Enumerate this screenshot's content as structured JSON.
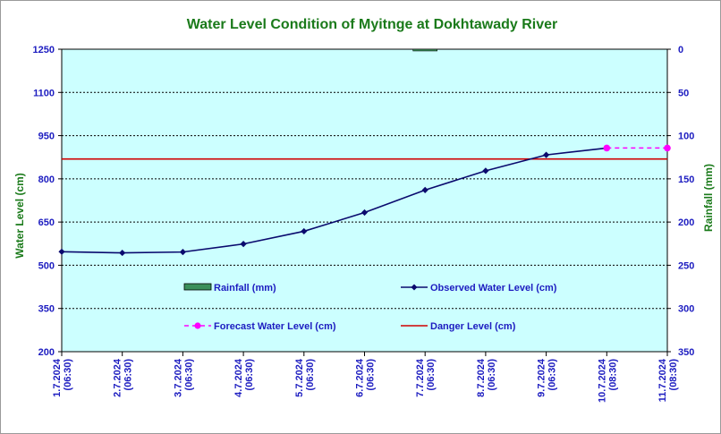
{
  "chart_data": {
    "type": "line",
    "title": "Water Level Condition of Myitnge at Dokhtawady River",
    "ylabel": "Water Level (cm)",
    "y2label": "Rainfall (mm)",
    "ylim": [
      200,
      1250
    ],
    "yticks": [
      200,
      350,
      500,
      650,
      800,
      950,
      1100,
      1250
    ],
    "y2lim": [
      0,
      350
    ],
    "y2ticks": [
      0,
      50,
      100,
      150,
      200,
      250,
      300,
      350
    ],
    "y2_inverted": true,
    "grid": true,
    "categories": [
      [
        "1.7.2024",
        "(06:30)"
      ],
      [
        "2.7.2024",
        "(06:30)"
      ],
      [
        "3.7.2024",
        "(06:30)"
      ],
      [
        "4.7.2024",
        "(06:30)"
      ],
      [
        "5.7.2024",
        "(06:30)"
      ],
      [
        "6.7.2024",
        "(06:30)"
      ],
      [
        "7.7.2024",
        "(06:30)"
      ],
      [
        "8.7.2024",
        "(06:30)"
      ],
      [
        "9.7.2024",
        "(06:30)"
      ],
      [
        "10.7.2024",
        "(08:30)"
      ],
      [
        "11.7.2024",
        "(08:30)"
      ]
    ],
    "series": [
      {
        "name": "Rainfall (mm)",
        "kind": "bar",
        "axis": "right",
        "color": "#3a8f5a",
        "values": [
          0,
          0,
          0,
          0,
          0,
          0,
          1,
          0,
          0,
          0,
          null
        ]
      },
      {
        "name": "Observed Water Level (cm)",
        "kind": "line",
        "axis": "left",
        "color": "#0a0a6e",
        "marker": "diamond",
        "values": [
          547,
          543,
          546,
          574,
          618,
          683,
          761,
          828,
          883,
          907,
          null
        ]
      },
      {
        "name": "Forecast Water Level (cm)",
        "kind": "line",
        "axis": "left",
        "color": "#ff00ff",
        "marker": "circle",
        "dashed": true,
        "values": [
          null,
          null,
          null,
          null,
          null,
          null,
          null,
          null,
          null,
          907,
          907
        ]
      },
      {
        "name": "Danger Level (cm)",
        "kind": "hline",
        "axis": "left",
        "color": "#d00000",
        "value": 869
      }
    ],
    "colors": {
      "plot_bg": "#ccffff",
      "tick_text": "#1c1cc0",
      "title_text": "#1a7a1a"
    }
  }
}
